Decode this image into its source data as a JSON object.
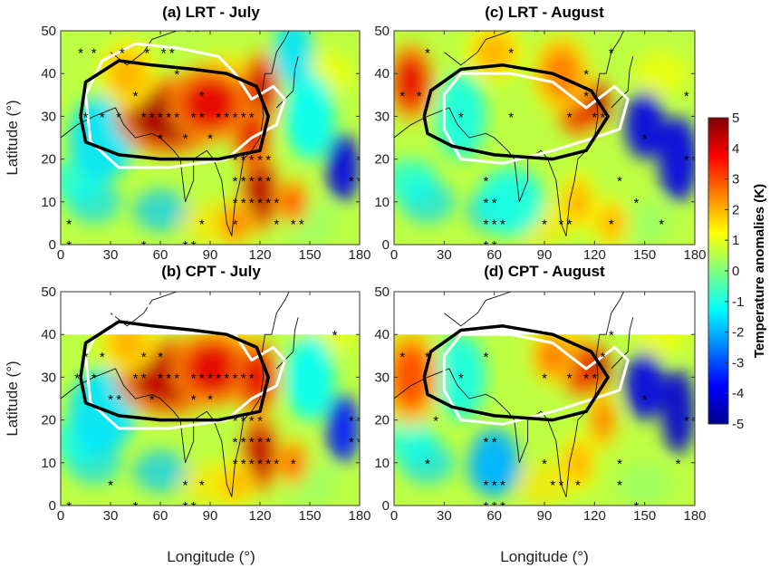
{
  "chart_data": {
    "type": "heatmap",
    "colorbar": {
      "label": "Temperature anomalies (K)",
      "range": [
        -5,
        5
      ],
      "ticks": [
        "5",
        "4",
        "3",
        "2",
        "1",
        "0",
        "-1",
        "-2",
        "-3",
        "-4",
        "-5"
      ],
      "colormap": "jet"
    },
    "xlabel": "Longitude (°)",
    "ylabel": "Latitude (°)",
    "xlim": [
      0,
      180
    ],
    "ylim": [
      0,
      50
    ],
    "xticks": [
      "0",
      "30",
      "60",
      "90",
      "120",
      "150",
      "180"
    ],
    "yticks": [
      "0",
      "10",
      "20",
      "30",
      "40",
      "50"
    ],
    "panels": [
      {
        "title": "(a) LRT - July",
        "hotspots": [
          [
            65,
            30,
            4.6,
            28,
            8
          ],
          [
            90,
            33,
            4.0,
            22,
            8
          ],
          [
            120,
            36,
            4.2,
            10,
            8
          ],
          [
            115,
            25,
            4.0,
            10,
            7
          ],
          [
            120,
            12,
            4.5,
            10,
            8
          ],
          [
            140,
            10,
            3.0,
            8,
            5
          ],
          [
            105,
            5,
            2.5,
            10,
            5
          ],
          [
            40,
            40,
            2.0,
            15,
            7
          ]
        ],
        "coldspots": [
          [
            170,
            18,
            -4.0,
            10,
            8
          ],
          [
            25,
            25,
            -1.5,
            20,
            10
          ],
          [
            150,
            30,
            -1.2,
            15,
            10
          ],
          [
            140,
            45,
            -1.5,
            12,
            8
          ]
        ],
        "stars": [
          [
            12,
            45
          ],
          [
            20,
            45
          ],
          [
            37,
            45
          ],
          [
            52,
            45
          ],
          [
            62,
            45
          ],
          [
            67,
            45
          ],
          [
            77,
            50
          ],
          [
            82,
            50
          ],
          [
            45,
            35
          ],
          [
            70,
            40
          ],
          [
            85,
            35
          ],
          [
            15,
            30
          ],
          [
            25,
            30
          ],
          [
            35,
            30
          ],
          [
            50,
            30
          ],
          [
            55,
            30
          ],
          [
            60,
            30
          ],
          [
            65,
            30
          ],
          [
            70,
            30
          ],
          [
            80,
            30
          ],
          [
            85,
            30
          ],
          [
            95,
            30
          ],
          [
            100,
            30
          ],
          [
            105,
            30
          ],
          [
            110,
            30
          ],
          [
            115,
            30
          ],
          [
            60,
            25
          ],
          [
            75,
            25
          ],
          [
            90,
            25
          ],
          [
            105,
            20
          ],
          [
            110,
            20
          ],
          [
            115,
            20
          ],
          [
            120,
            20
          ],
          [
            125,
            20
          ],
          [
            105,
            15
          ],
          [
            110,
            15
          ],
          [
            115,
            15
          ],
          [
            120,
            15
          ],
          [
            125,
            15
          ],
          [
            105,
            10
          ],
          [
            110,
            10
          ],
          [
            115,
            10
          ],
          [
            120,
            10
          ],
          [
            125,
            10
          ],
          [
            130,
            10
          ],
          [
            105,
            5
          ],
          [
            130,
            5
          ],
          [
            140,
            5
          ],
          [
            145,
            5
          ],
          [
            85,
            5
          ],
          [
            175,
            15
          ],
          [
            180,
            15
          ],
          [
            180,
            20
          ],
          [
            5,
            5
          ],
          [
            5,
            0
          ],
          [
            50,
            0
          ],
          [
            75,
            0
          ],
          [
            80,
            0
          ]
        ]
      },
      {
        "title": "(b) CPT - July",
        "clip": 40,
        "hotspots": [
          [
            65,
            30,
            4.4,
            28,
            8
          ],
          [
            92,
            32,
            4.0,
            22,
            8
          ],
          [
            118,
            30,
            4.0,
            12,
            8
          ],
          [
            120,
            12,
            4.4,
            10,
            8
          ],
          [
            140,
            10,
            2.8,
            8,
            5
          ],
          [
            105,
            5,
            2.0,
            10,
            5
          ],
          [
            40,
            38,
            2.0,
            15,
            6
          ]
        ],
        "coldspots": [
          [
            170,
            18,
            -3.5,
            10,
            8
          ],
          [
            25,
            22,
            -1.5,
            20,
            10
          ],
          [
            150,
            30,
            -1.2,
            15,
            10
          ]
        ],
        "stars": [
          [
            10,
            30
          ],
          [
            20,
            30
          ],
          [
            15,
            35
          ],
          [
            25,
            35
          ],
          [
            30,
            25
          ],
          [
            35,
            25
          ],
          [
            45,
            30
          ],
          [
            50,
            30
          ],
          [
            60,
            30
          ],
          [
            65,
            30
          ],
          [
            70,
            30
          ],
          [
            80,
            30
          ],
          [
            85,
            30
          ],
          [
            90,
            30
          ],
          [
            95,
            30
          ],
          [
            100,
            30
          ],
          [
            105,
            30
          ],
          [
            110,
            30
          ],
          [
            115,
            30
          ],
          [
            50,
            35
          ],
          [
            60,
            35
          ],
          [
            55,
            25
          ],
          [
            80,
            25
          ],
          [
            90,
            25
          ],
          [
            105,
            20
          ],
          [
            110,
            20
          ],
          [
            115,
            20
          ],
          [
            120,
            20
          ],
          [
            105,
            15
          ],
          [
            110,
            15
          ],
          [
            115,
            15
          ],
          [
            120,
            15
          ],
          [
            125,
            15
          ],
          [
            105,
            10
          ],
          [
            110,
            10
          ],
          [
            115,
            10
          ],
          [
            120,
            10
          ],
          [
            125,
            10
          ],
          [
            130,
            10
          ],
          [
            140,
            10
          ],
          [
            30,
            5
          ],
          [
            75,
            5
          ],
          [
            85,
            5
          ],
          [
            5,
            0
          ],
          [
            45,
            0
          ],
          [
            75,
            0
          ],
          [
            80,
            0
          ],
          [
            165,
            40
          ],
          [
            175,
            20
          ],
          [
            180,
            20
          ],
          [
            175,
            15
          ],
          [
            180,
            15
          ]
        ]
      },
      {
        "title": "(c) LRT - August",
        "hotspots": [
          [
            10,
            38,
            4.0,
            12,
            8
          ],
          [
            110,
            32,
            4.0,
            12,
            6
          ],
          [
            123,
            33,
            4.6,
            6,
            5
          ],
          [
            100,
            40,
            2.5,
            15,
            8
          ],
          [
            60,
            45,
            2.0,
            15,
            6
          ],
          [
            110,
            10,
            2.0,
            10,
            6
          ],
          [
            130,
            5,
            2.0,
            10,
            5
          ]
        ],
        "coldspots": [
          [
            150,
            28,
            -4.0,
            12,
            8
          ],
          [
            170,
            20,
            -4.0,
            12,
            10
          ],
          [
            40,
            30,
            -1.0,
            15,
            10
          ],
          [
            70,
            10,
            -1.0,
            20,
            8
          ]
        ],
        "stars": [
          [
            5,
            35
          ],
          [
            15,
            35
          ],
          [
            20,
            45
          ],
          [
            40,
            30
          ],
          [
            70,
            30
          ],
          [
            105,
            30
          ],
          [
            120,
            30
          ],
          [
            125,
            30
          ],
          [
            115,
            35
          ],
          [
            70,
            45
          ],
          [
            50,
            50
          ],
          [
            85,
            50
          ],
          [
            115,
            40
          ],
          [
            130,
            45
          ],
          [
            165,
            50
          ],
          [
            175,
            35
          ],
          [
            180,
            20
          ],
          [
            175,
            20
          ],
          [
            150,
            25
          ],
          [
            55,
            15
          ],
          [
            55,
            10
          ],
          [
            60,
            10
          ],
          [
            60,
            5
          ],
          [
            55,
            5
          ],
          [
            65,
            5
          ],
          [
            90,
            5
          ],
          [
            100,
            5
          ],
          [
            105,
            5
          ],
          [
            130,
            5
          ],
          [
            145,
            10
          ],
          [
            160,
            5
          ],
          [
            135,
            15
          ],
          [
            55,
            0
          ],
          [
            60,
            0
          ]
        ]
      },
      {
        "title": "(d) CPT - August",
        "clip": 40,
        "hotspots": [
          [
            10,
            30,
            3.0,
            15,
            10
          ],
          [
            112,
            32,
            4.0,
            12,
            6
          ],
          [
            123,
            32,
            4.5,
            6,
            5
          ],
          [
            95,
            35,
            2.5,
            12,
            6
          ],
          [
            125,
            20,
            2.5,
            8,
            6
          ],
          [
            110,
            10,
            2.0,
            10,
            6
          ]
        ],
        "coldspots": [
          [
            150,
            28,
            -4.0,
            12,
            8
          ],
          [
            170,
            22,
            -4.2,
            10,
            10
          ],
          [
            60,
            10,
            -2.0,
            15,
            8
          ],
          [
            40,
            30,
            -1.0,
            15,
            10
          ]
        ],
        "stars": [
          [
            5,
            35
          ],
          [
            20,
            35
          ],
          [
            40,
            30
          ],
          [
            55,
            35
          ],
          [
            90,
            30
          ],
          [
            105,
            30
          ],
          [
            115,
            30
          ],
          [
            120,
            30
          ],
          [
            125,
            35
          ],
          [
            130,
            40
          ],
          [
            150,
            25
          ],
          [
            175,
            20
          ],
          [
            180,
            20
          ],
          [
            25,
            20
          ],
          [
            55,
            15
          ],
          [
            60,
            15
          ],
          [
            20,
            10
          ],
          [
            55,
            5
          ],
          [
            60,
            5
          ],
          [
            65,
            5
          ],
          [
            90,
            10
          ],
          [
            95,
            5
          ],
          [
            100,
            5
          ],
          [
            110,
            5
          ],
          [
            135,
            10
          ],
          [
            170,
            10
          ],
          [
            135,
            5
          ],
          [
            55,
            0
          ],
          [
            60,
            0
          ],
          [
            65,
            0
          ],
          [
            145,
            0
          ]
        ]
      }
    ]
  }
}
